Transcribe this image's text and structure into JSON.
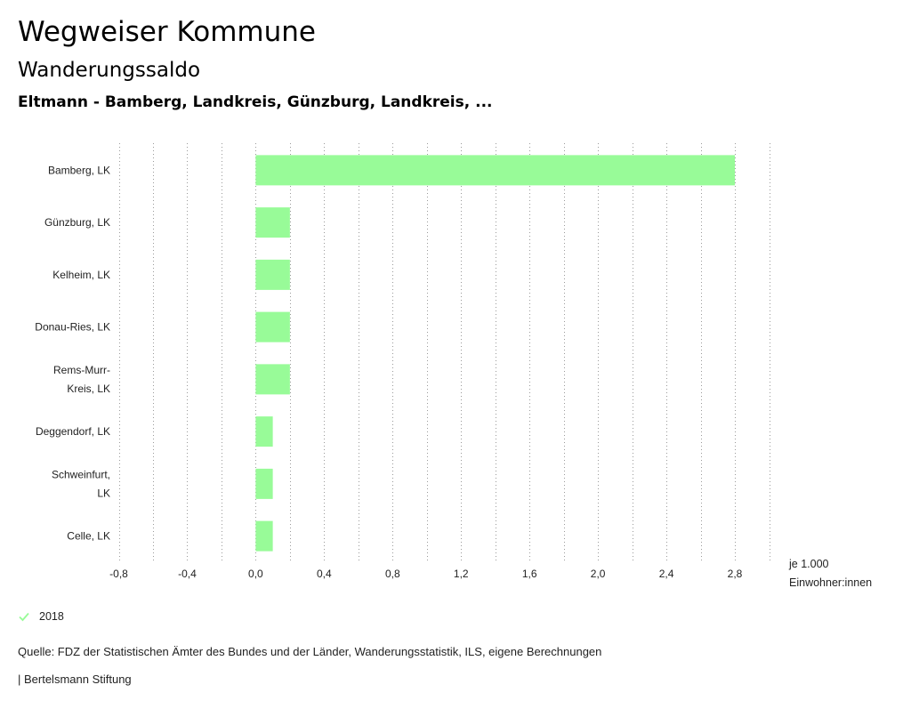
{
  "header": {
    "title": "Wegweiser Kommune",
    "subtitle": "Wanderungssaldo",
    "comparison": "Eltmann - Bamberg, Landkreis, Günzburg, Landkreis, ..."
  },
  "chart_data": {
    "type": "bar",
    "orientation": "horizontal",
    "categories": [
      "Bamberg, LK",
      "Günzburg, LK",
      "Kelheim, LK",
      "Donau-Ries, LK",
      "Rems-Murr-Kreis, LK",
      "Deggendorf, LK",
      "Schweinfurt, LK",
      "Celle, LK"
    ],
    "category_lines": [
      [
        "Bamberg, LK"
      ],
      [
        "Günzburg, LK"
      ],
      [
        "Kelheim, LK"
      ],
      [
        "Donau-Ries, LK"
      ],
      [
        "Rems-Murr-",
        "Kreis, LK"
      ],
      [
        "Deggendorf, LK"
      ],
      [
        "Schweinfurt,",
        "LK"
      ],
      [
        "Celle, LK"
      ]
    ],
    "series": [
      {
        "name": "2018",
        "values": [
          2.8,
          0.2,
          0.2,
          0.2,
          0.2,
          0.1,
          0.1,
          0.1
        ]
      }
    ],
    "xlim": [
      -0.8,
      3.0
    ],
    "xticks": [
      -0.8,
      -0.4,
      0.0,
      0.4,
      0.8,
      1.2,
      1.6,
      2.0,
      2.4,
      2.8
    ],
    "xtick_labels": [
      "-0,8",
      "-0,4",
      "0,0",
      "0,4",
      "0,8",
      "1,2",
      "1,6",
      "2,0",
      "2,4",
      "2,8"
    ],
    "gridlines": true,
    "xlabel": "je 1.000 Einwohner:innen",
    "bar_color": "#98fb98"
  },
  "unit_label": {
    "line1": "je 1.000",
    "line2": "Einwohner:innen"
  },
  "legend": {
    "label": "2018",
    "color": "#98fb98"
  },
  "source": "Quelle: FDZ der Statistischen Ämter des Bundes und der Länder, Wanderungsstatistik, ILS, eigene Berechnungen",
  "footer": {
    "brand": "| Bertelsmann Stiftung"
  }
}
